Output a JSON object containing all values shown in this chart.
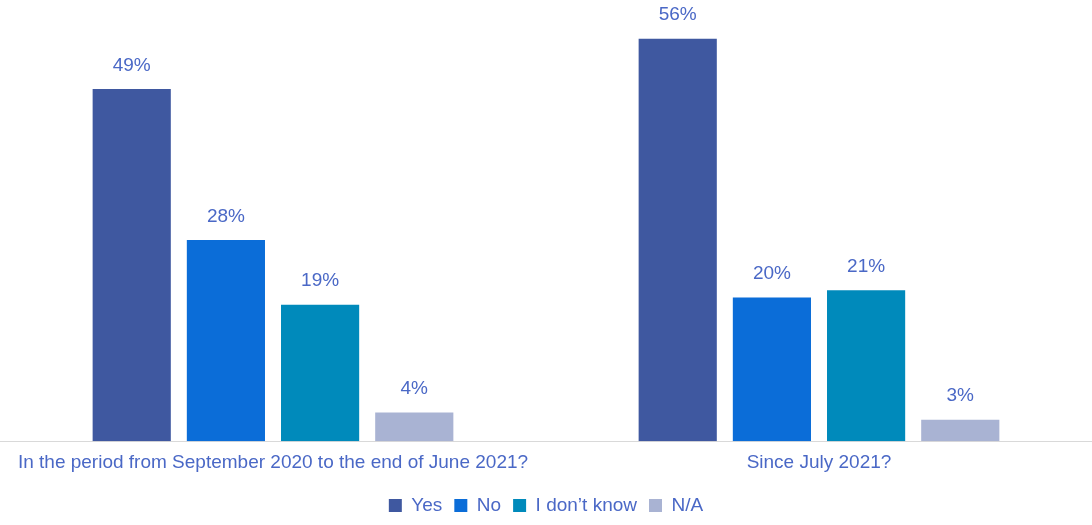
{
  "chart_data": {
    "type": "bar",
    "categories": [
      "In the period from September 2020 to the end of June 2021?",
      "Since July 2021?"
    ],
    "series": [
      {
        "name": "Yes",
        "color": "#3f58a0",
        "values": [
          49,
          56
        ],
        "value_labels": [
          "49%",
          "56%"
        ]
      },
      {
        "name": "No",
        "color": "#0b6dd8",
        "values": [
          28,
          20
        ],
        "value_labels": [
          "28%",
          "20%"
        ]
      },
      {
        "name": "I don’t know",
        "color": "#008abb",
        "values": [
          19,
          21
        ],
        "value_labels": [
          "19%",
          "21%"
        ]
      },
      {
        "name": "N/A",
        "color": "#a9b3d3",
        "values": [
          4,
          3
        ],
        "value_labels": [
          "4%",
          "3%"
        ]
      }
    ],
    "grid": false,
    "legend": "bottom"
  }
}
